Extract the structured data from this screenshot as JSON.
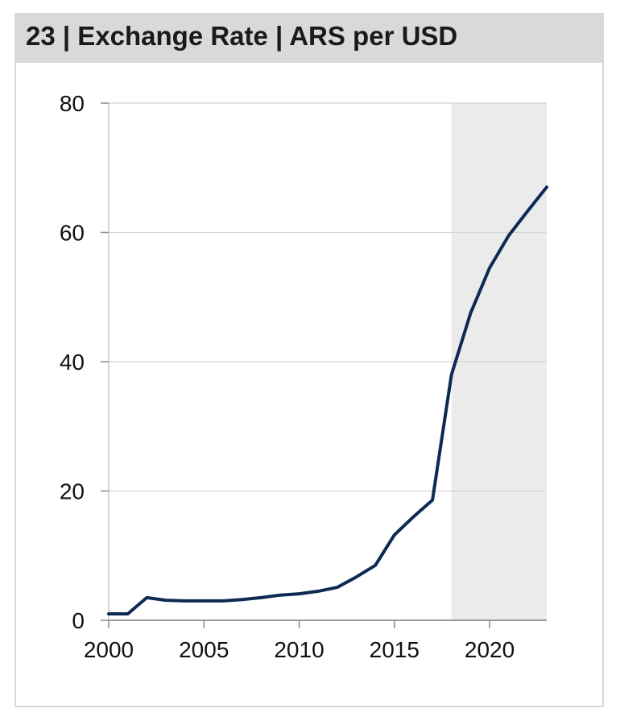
{
  "title": "23 | Exchange Rate | ARS per USD",
  "chart_data": {
    "type": "line",
    "title": "23 | Exchange Rate | ARS per USD",
    "xlabel": "",
    "ylabel": "",
    "xlim": [
      2000,
      2023
    ],
    "ylim": [
      0,
      80
    ],
    "xticks": [
      2000,
      2005,
      2010,
      2015,
      2020
    ],
    "yticks": [
      0,
      20,
      40,
      60,
      80
    ],
    "grid": true,
    "forecast_shading": {
      "from": 2018,
      "to": 2023,
      "color": "#ebebeb"
    },
    "series": [
      {
        "name": "",
        "color": "#0d2a55",
        "x": [
          2000,
          2001,
          2002,
          2003,
          2004,
          2005,
          2006,
          2007,
          2008,
          2009,
          2010,
          2011,
          2012,
          2013,
          2014,
          2015,
          2016,
          2017,
          2018,
          2019,
          2020,
          2021,
          2022,
          2023
        ],
        "values": [
          1.0,
          1.0,
          3.5,
          3.1,
          3.0,
          3.0,
          3.0,
          3.2,
          3.5,
          3.9,
          4.1,
          4.5,
          5.1,
          6.7,
          8.5,
          13.2,
          16.0,
          18.6,
          38.0,
          47.5,
          54.5,
          59.5,
          63.3,
          67.0
        ]
      }
    ]
  }
}
